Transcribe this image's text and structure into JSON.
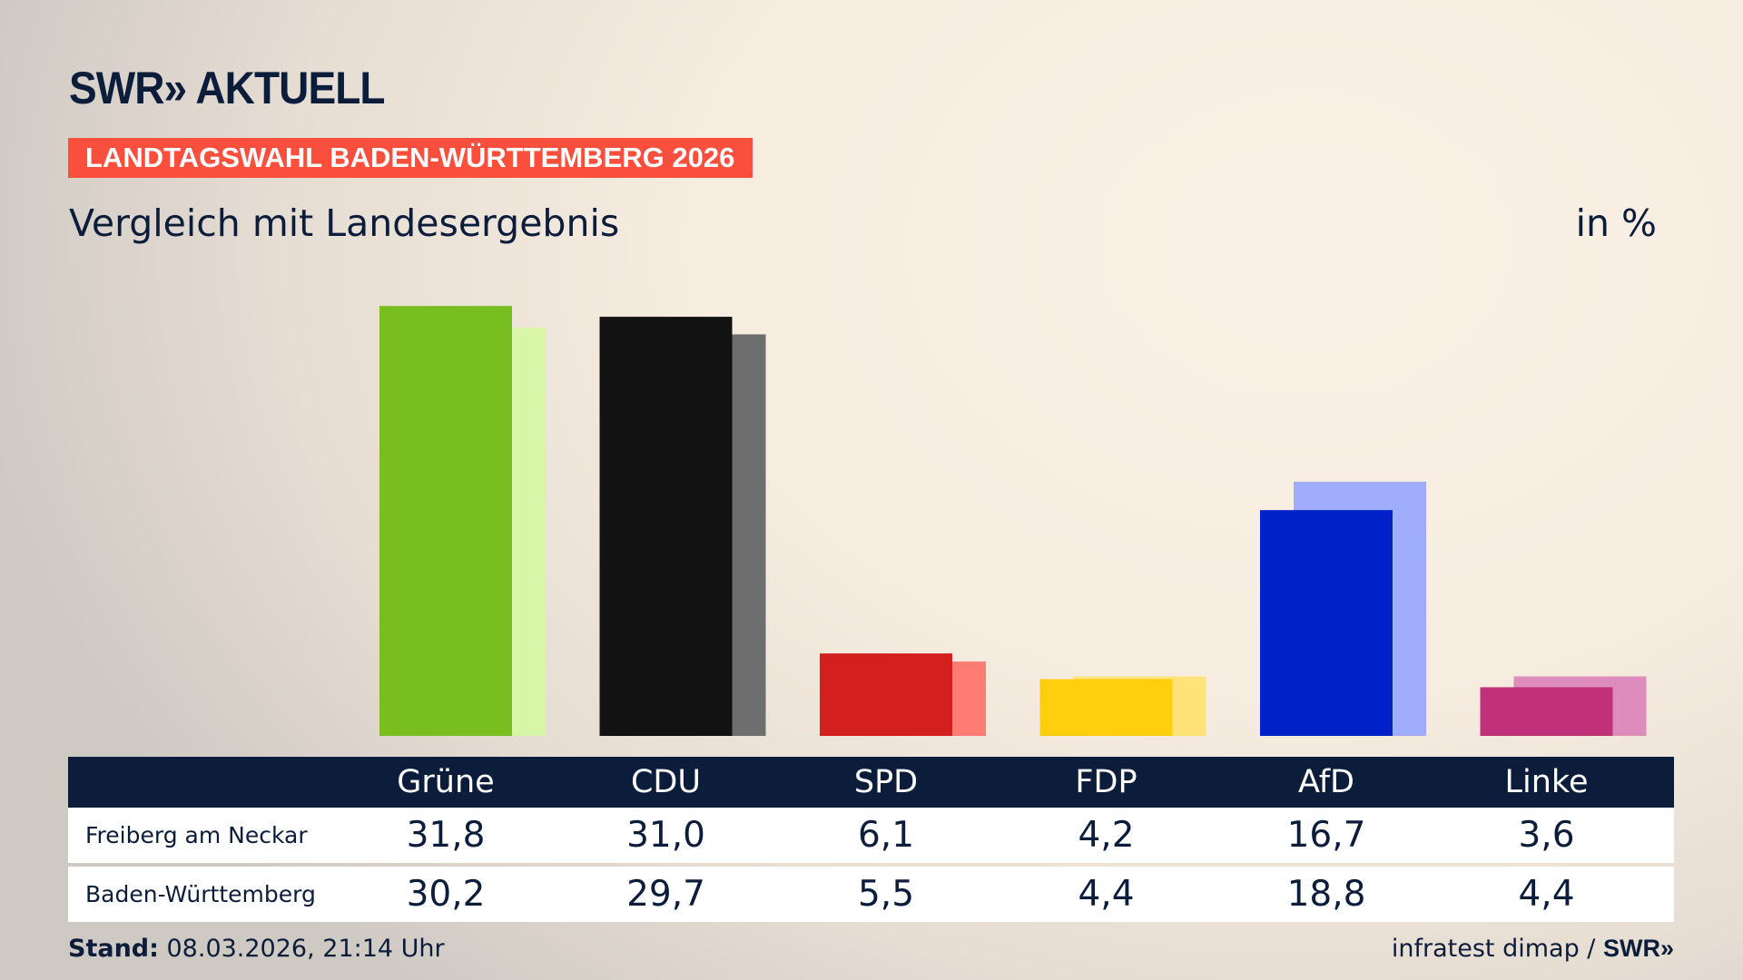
{
  "header": {
    "logo": "SWR» AKTUELL",
    "banner": "LANDTAGSWAHL BADEN-WÜRTTEMBERG 2026",
    "subtitle": "Vergleich mit Landesergebnis",
    "unit": "in %"
  },
  "chart_data": {
    "type": "bar",
    "categories": [
      "Grüne",
      "CDU",
      "SPD",
      "FDP",
      "AfD",
      "Linke"
    ],
    "series": [
      {
        "name": "Freiberg am Neckar",
        "values": [
          31.8,
          31.0,
          6.1,
          4.2,
          16.7,
          3.6
        ],
        "formatted": [
          "31,8",
          "31,0",
          "6,1",
          "4,2",
          "16,7",
          "3,6"
        ]
      },
      {
        "name": "Baden-Württemberg",
        "values": [
          30.2,
          29.7,
          5.5,
          4.4,
          18.8,
          4.4
        ],
        "formatted": [
          "30,2",
          "29,7",
          "5,5",
          "4,4",
          "18,8",
          "4,4"
        ]
      }
    ],
    "colors": {
      "primary": [
        "#78be1e",
        "#121212",
        "#d41f1f",
        "#ffcf0d",
        "#0021c8",
        "#c1317a"
      ],
      "secondary": [
        "#d8f5a8",
        "#6e6e6e",
        "#ff7c74",
        "#ffe37a",
        "#9fadfc",
        "#de8cbb"
      ]
    },
    "ylim": [
      0,
      32
    ],
    "grid": false
  },
  "footer": {
    "stand_label": "Stand:",
    "stand_value": " 08.03.2026, 21:14 Uhr",
    "source": "infratest dimap / ",
    "source_logo": "SWR»"
  }
}
